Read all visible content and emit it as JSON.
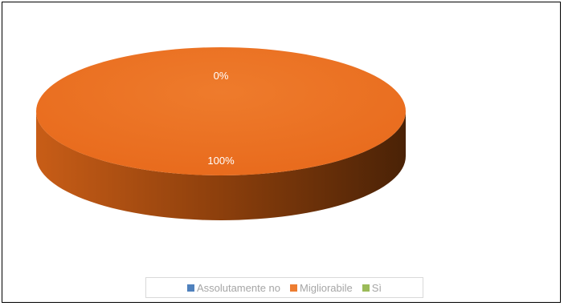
{
  "chart_data": {
    "type": "pie",
    "style": "3d",
    "categories": [
      "Assolutamente no",
      "Migliorabile",
      "Sì"
    ],
    "values": [
      0,
      100,
      0
    ],
    "data_labels": [
      "0%",
      "100%",
      ""
    ],
    "colors": [
      "#4f81bd",
      "#ed7d31",
      "#9bbb59"
    ],
    "legend_position": "bottom",
    "title": ""
  }
}
